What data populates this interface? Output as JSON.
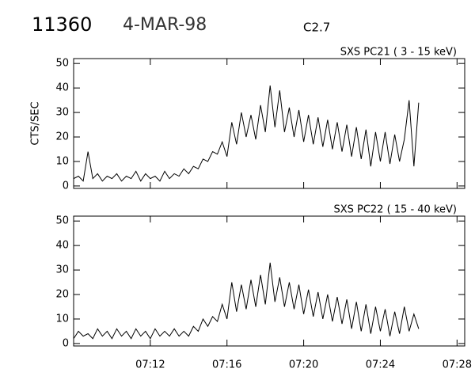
{
  "header": {
    "event": "11360",
    "date": "4-MAR-98",
    "class": "C2.7"
  },
  "chart_data": [
    {
      "type": "line",
      "title": "SXS PC21  (  3 - 15 keV)",
      "ylabel": "CTS/SEC",
      "x": [
        8,
        8.25,
        8.5,
        8.75,
        9,
        9.25,
        9.5,
        9.75,
        10,
        10.25,
        10.5,
        10.75,
        11,
        11.25,
        11.5,
        11.75,
        12,
        12.25,
        12.5,
        12.75,
        13,
        13.25,
        13.5,
        13.75,
        14,
        14.25,
        14.5,
        14.75,
        15,
        15.25,
        15.5,
        15.75,
        16,
        16.25,
        16.5,
        16.75,
        17,
        17.25,
        17.5,
        17.75,
        18,
        18.25,
        18.5,
        18.75,
        19,
        19.25,
        19.5,
        19.75,
        20,
        20.25,
        20.5,
        20.75,
        21,
        21.25,
        21.5,
        21.75,
        22,
        22.25,
        22.5,
        22.75,
        23,
        23.25,
        23.5,
        23.75,
        24,
        24.25,
        24.5,
        24.75,
        25,
        25.25,
        25.5,
        25.75,
        26
      ],
      "values": [
        3,
        4,
        2,
        14,
        3,
        5,
        2,
        4,
        3,
        5,
        2,
        4,
        3,
        6,
        2,
        5,
        3,
        4,
        2,
        6,
        3,
        5,
        4,
        7,
        5,
        8,
        7,
        11,
        10,
        14,
        13,
        18,
        12,
        26,
        17,
        30,
        20,
        29,
        19,
        33,
        22,
        41,
        24,
        39,
        22,
        32,
        20,
        31,
        18,
        29,
        17,
        28,
        16,
        27,
        15,
        26,
        14,
        25,
        12,
        24,
        11,
        23,
        8,
        22,
        10,
        22,
        9,
        21,
        10,
        19,
        35,
        8,
        34
      ],
      "color": "#000000",
      "xlim": [
        8,
        28.4
      ],
      "xticks": [
        12,
        16,
        20,
        24,
        28
      ],
      "ylim": [
        -1,
        52
      ],
      "yticks": [
        0,
        10,
        20,
        30,
        40,
        50
      ]
    },
    {
      "type": "line",
      "title": "SXS PC22  ( 15 - 40 keV)",
      "x": [
        8,
        8.25,
        8.5,
        8.75,
        9,
        9.25,
        9.5,
        9.75,
        10,
        10.25,
        10.5,
        10.75,
        11,
        11.25,
        11.5,
        11.75,
        12,
        12.25,
        12.5,
        12.75,
        13,
        13.25,
        13.5,
        13.75,
        14,
        14.25,
        14.5,
        14.75,
        15,
        15.25,
        15.5,
        15.75,
        16,
        16.25,
        16.5,
        16.75,
        17,
        17.25,
        17.5,
        17.75,
        18,
        18.25,
        18.5,
        18.75,
        19,
        19.25,
        19.5,
        19.75,
        20,
        20.25,
        20.5,
        20.75,
        21,
        21.25,
        21.5,
        21.75,
        22,
        22.25,
        22.5,
        22.75,
        23,
        23.25,
        23.5,
        23.75,
        24,
        24.25,
        24.5,
        24.75,
        25,
        25.25,
        25.5,
        25.75,
        26
      ],
      "values": [
        2,
        5,
        3,
        4,
        2,
        6,
        3,
        5,
        2,
        6,
        3,
        5,
        2,
        6,
        3,
        5,
        2,
        6,
        3,
        5,
        3,
        6,
        3,
        5,
        3,
        7,
        5,
        10,
        7,
        11,
        9,
        16,
        10,
        25,
        13,
        24,
        14,
        26,
        15,
        28,
        16,
        33,
        17,
        27,
        15,
        25,
        14,
        24,
        12,
        22,
        11,
        21,
        10,
        20,
        9,
        19,
        8,
        18,
        6,
        17,
        5,
        16,
        4,
        15,
        5,
        14,
        3,
        13,
        4,
        15,
        5,
        12,
        6
      ],
      "color": "#000000",
      "xlim": [
        8,
        28.4
      ],
      "xticks": [
        {
          "value": 12,
          "label": "07:12"
        },
        {
          "value": 16,
          "label": "07:16"
        },
        {
          "value": 20,
          "label": "07:20"
        },
        {
          "value": 24,
          "label": "07:24"
        },
        {
          "value": 28,
          "label": "07:28"
        }
      ],
      "ylim": [
        -1,
        52
      ],
      "yticks": [
        0,
        10,
        20,
        30,
        40,
        50
      ]
    }
  ]
}
